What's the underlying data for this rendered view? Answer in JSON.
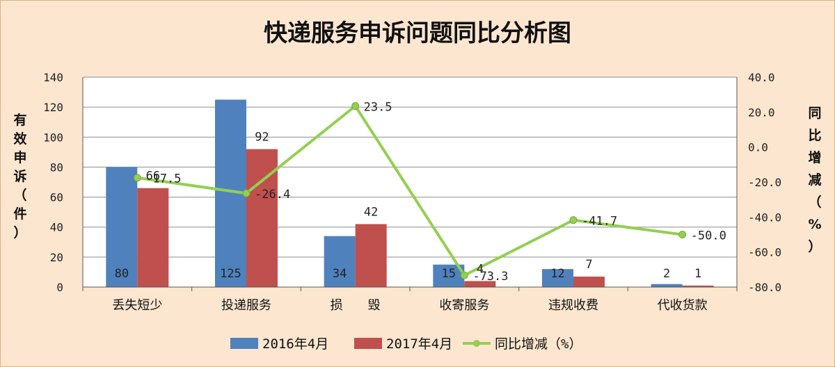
{
  "chart_data": {
    "type": "bar",
    "title": "快递服务申诉问题同比分析图",
    "categories": [
      "丢失短少",
      "投递服务",
      "损　　毁",
      "收寄服务",
      "违规收费",
      "代收货款"
    ],
    "series": [
      {
        "name": "2016年4月",
        "type": "bar",
        "axis": "left",
        "color": "#4f81bd",
        "values": [
          80,
          125,
          34,
          15,
          12,
          2
        ]
      },
      {
        "name": "2017年4月",
        "type": "bar",
        "axis": "left",
        "color": "#c0504d",
        "values": [
          66,
          92,
          42,
          4,
          7,
          1
        ]
      },
      {
        "name": "同比增减（%）",
        "type": "line",
        "axis": "right",
        "color": "#92d050",
        "values": [
          -17.5,
          -26.4,
          23.5,
          -73.3,
          -41.7,
          -50.0
        ]
      }
    ],
    "ylabel": "有效申诉（件）",
    "y2label": "同比增减（%）",
    "ylim": [
      0,
      140
    ],
    "y_ticks": [
      "0",
      "20",
      "40",
      "60",
      "80",
      "100",
      "120",
      "140"
    ],
    "y2lim": [
      -80,
      40
    ],
    "y2_ticks": [
      "-80.0",
      "-60.0",
      "-40.0",
      "-20.0",
      "0.0",
      "20.0",
      "40.0"
    ],
    "grid": true,
    "legend_position": "bottom"
  }
}
